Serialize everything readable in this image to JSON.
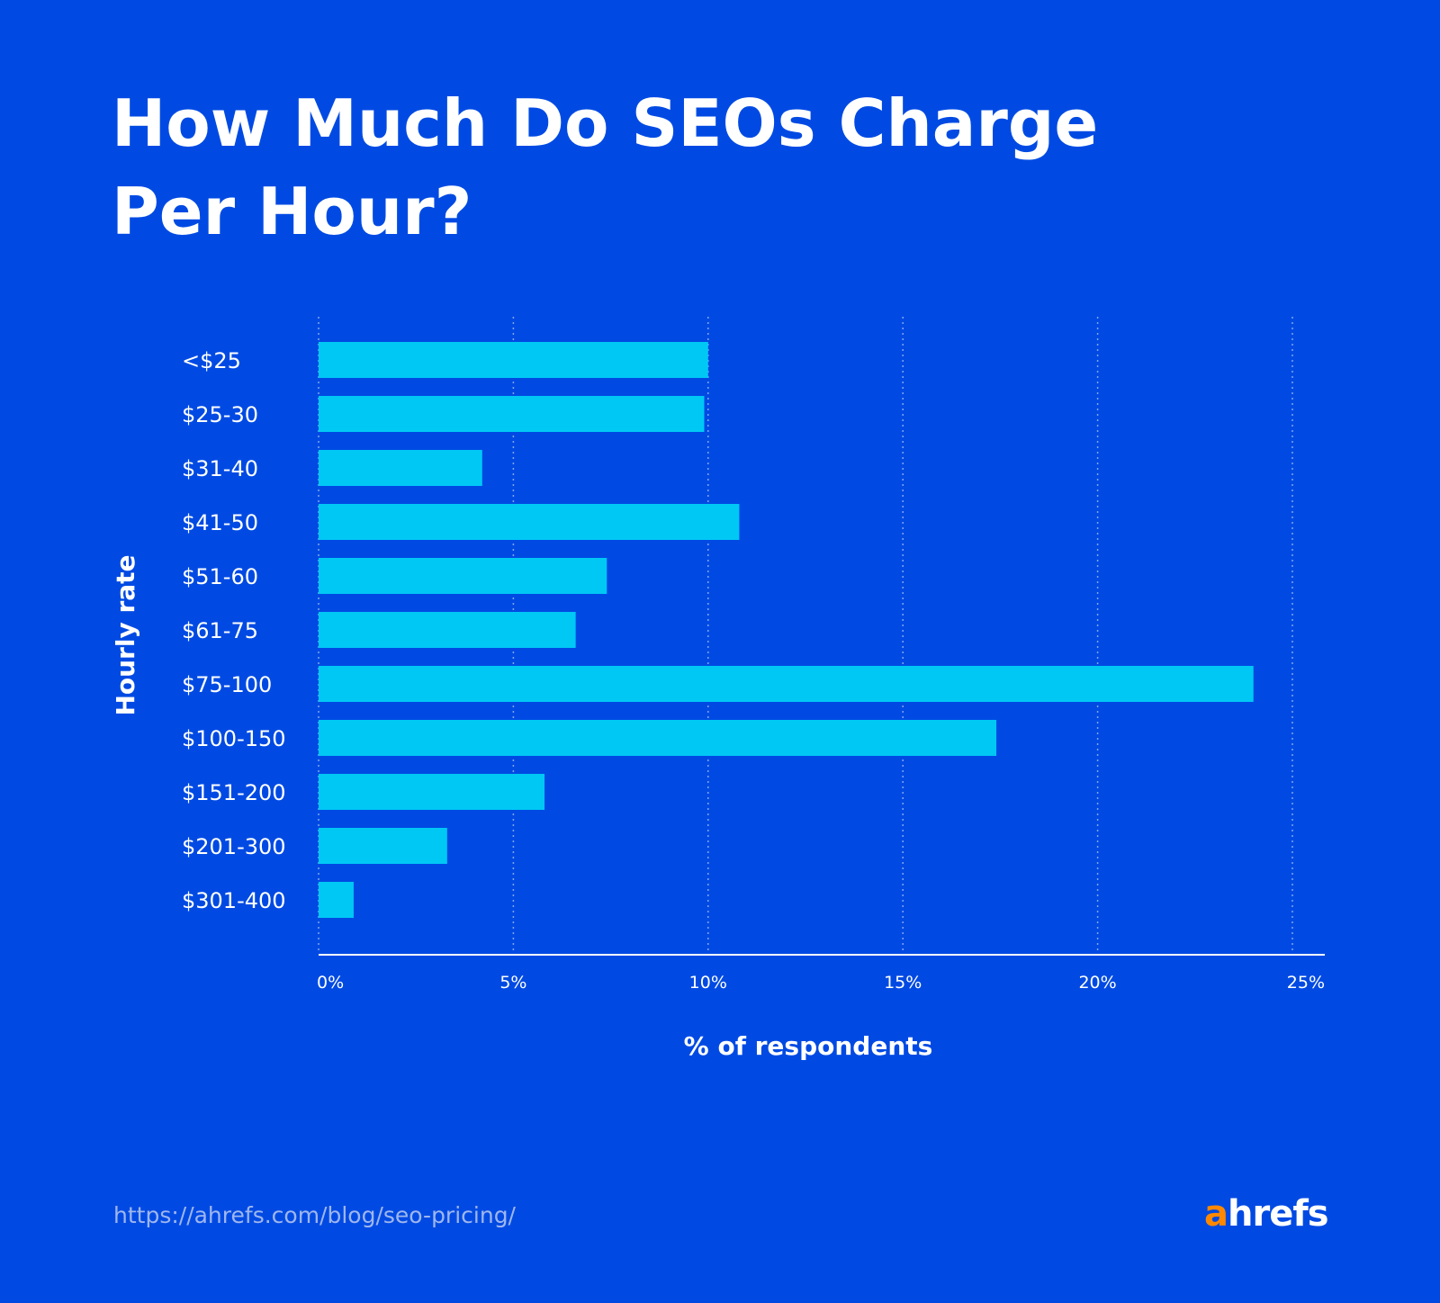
{
  "title": "How Much Do SEOs Charge Per Hour?",
  "source_url": "https://ahrefs.com/blog/seo-pricing/",
  "logo": {
    "first": "a",
    "rest": "hrefs"
  },
  "colors": {
    "background": "#004ae3",
    "bar": "#00c8f5",
    "text": "#ffffff",
    "grid": "#7fa6f0",
    "logo_accent": "#ff8800"
  },
  "chart_data": {
    "type": "bar",
    "orientation": "horizontal",
    "categories": [
      "<$25",
      "$25-30",
      "$31-40",
      "$41-50",
      "$51-60",
      "$61-75",
      "$75-100",
      "$100-150",
      "$151-200",
      "$201-300",
      "$301-400"
    ],
    "values": [
      10.0,
      9.9,
      4.2,
      10.8,
      7.4,
      6.6,
      24.0,
      17.4,
      5.8,
      3.3,
      0.9
    ],
    "xlabel": "% of respondents",
    "ylabel": "Hourly rate",
    "xlim": [
      0,
      25
    ],
    "x_ticks": [
      "0%",
      "5%",
      "10%",
      "15%",
      "20%",
      "25%"
    ],
    "x_tick_values": [
      0,
      5,
      10,
      15,
      20,
      25
    ],
    "grid": "vertical dotted"
  }
}
